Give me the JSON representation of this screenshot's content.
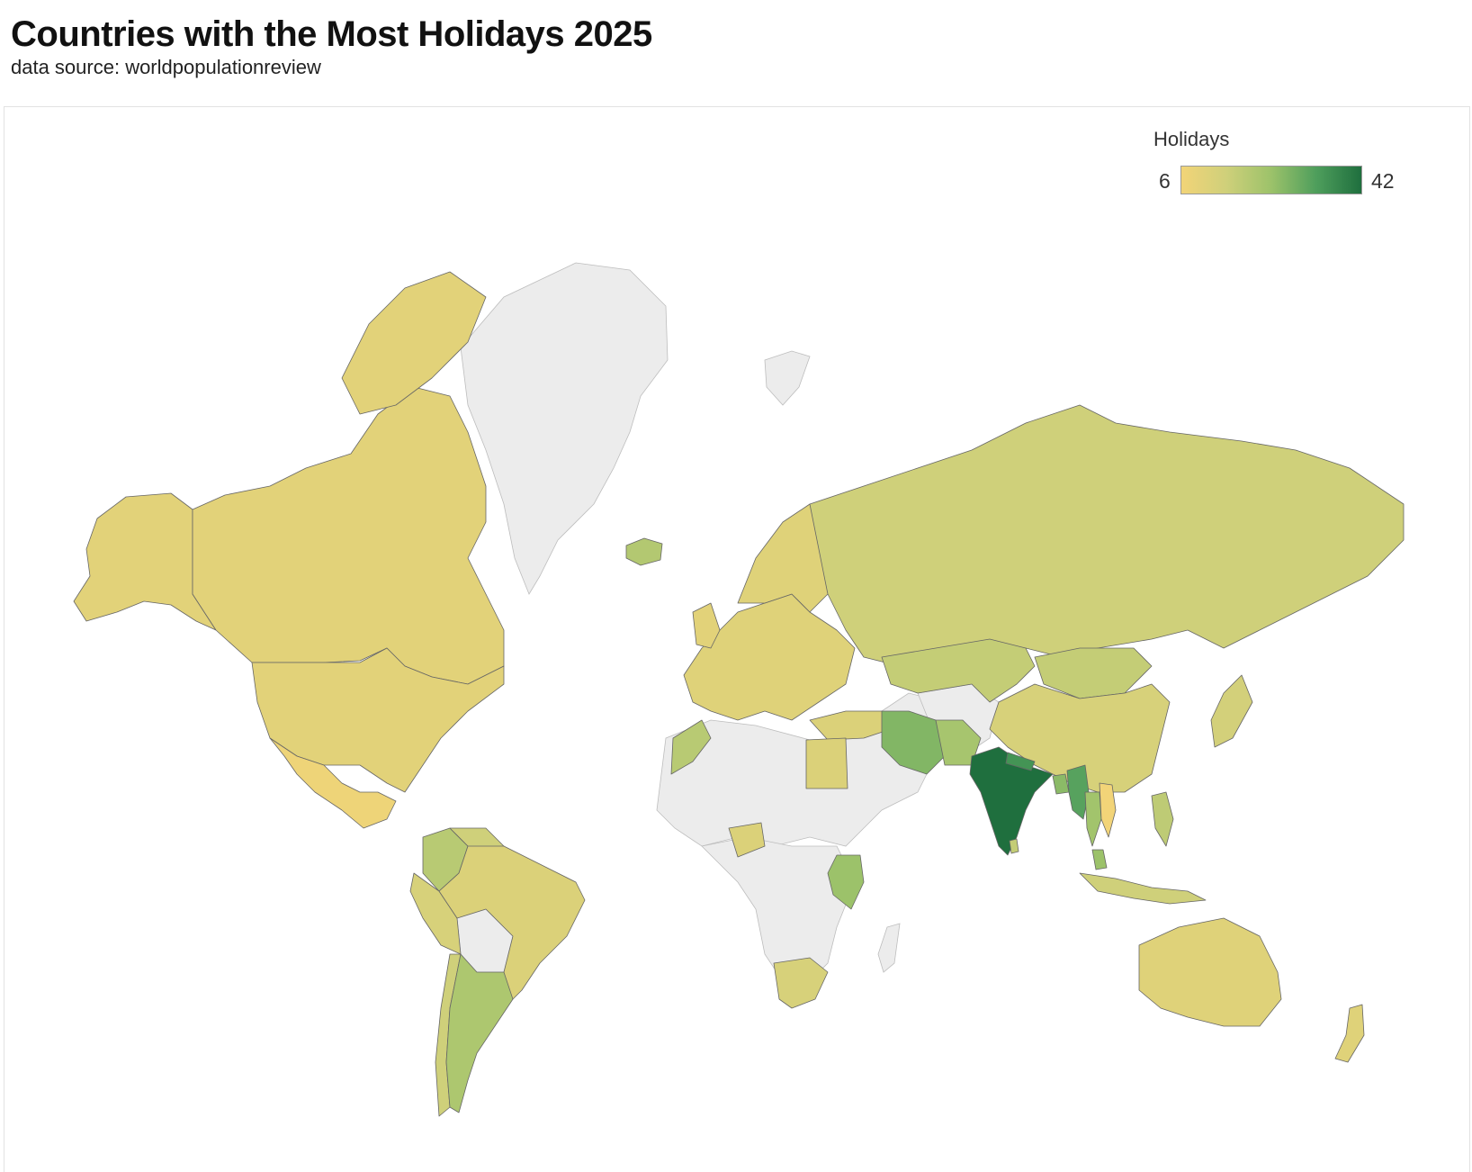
{
  "header": {
    "title": "Countries with the Most Holidays 2025",
    "subtitle": "data source: worldpopulationreview"
  },
  "legend": {
    "title": "Holidays",
    "min_label": "6",
    "max_label": "42"
  },
  "colors": {
    "scale_low": "#f2d478",
    "scale_mid_low": "#cfd07a",
    "scale_mid": "#9cc26a",
    "scale_mid_high": "#4e9e5c",
    "scale_high": "#1f6f3e",
    "no_data": "#ececec"
  },
  "chart_data": {
    "type": "choropleth",
    "value_name": "Holidays",
    "range": [
      6,
      42
    ],
    "regions": [
      {
        "name": "India",
        "value": 42
      },
      {
        "name": "Nepal",
        "value": 35
      },
      {
        "name": "Myanmar",
        "value": 32
      },
      {
        "name": "Iran",
        "value": 27
      },
      {
        "name": "Bangladesh",
        "value": 26
      },
      {
        "name": "Kenya",
        "value": 24
      },
      {
        "name": "Malaysia",
        "value": 24
      },
      {
        "name": "Thailand",
        "value": 23
      },
      {
        "name": "Pakistan",
        "value": 22
      },
      {
        "name": "Argentina",
        "value": 21
      },
      {
        "name": "Iceland",
        "value": 20
      },
      {
        "name": "Colombia",
        "value": 19
      },
      {
        "name": "Morocco",
        "value": 19
      },
      {
        "name": "Philippines",
        "value": 18
      },
      {
        "name": "Kazakhstan",
        "value": 17
      },
      {
        "name": "Mongolia",
        "value": 17
      },
      {
        "name": "Sri Lanka",
        "value": 17
      },
      {
        "name": "Russia",
        "value": 15
      },
      {
        "name": "Indonesia",
        "value": 15
      },
      {
        "name": "Venezuela",
        "value": 15
      },
      {
        "name": "Chile",
        "value": 15
      },
      {
        "name": "Japan",
        "value": 14
      },
      {
        "name": "South Africa",
        "value": 13
      },
      {
        "name": "China",
        "value": 13
      },
      {
        "name": "Peru",
        "value": 13
      },
      {
        "name": "Brazil",
        "value": 12
      },
      {
        "name": "Turkey",
        "value": 12
      },
      {
        "name": "Egypt",
        "value": 12
      },
      {
        "name": "Nigeria",
        "value": 12
      },
      {
        "name": "Australia",
        "value": 11
      },
      {
        "name": "New Zealand",
        "value": 11
      },
      {
        "name": "Canada",
        "value": 10
      },
      {
        "name": "United States",
        "value": 10
      },
      {
        "name": "Greenland",
        "value": null
      },
      {
        "name": "Mexico",
        "value": 7
      },
      {
        "name": "Vietnam",
        "value": 6
      }
    ]
  }
}
